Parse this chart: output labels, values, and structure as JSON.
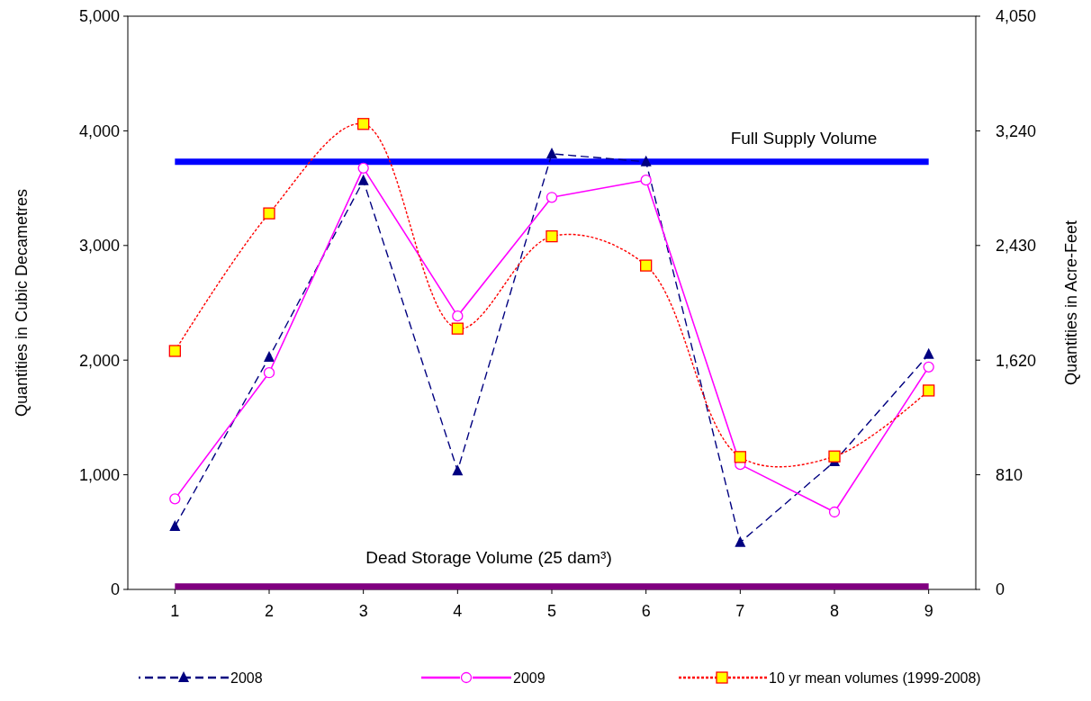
{
  "chart_data": {
    "type": "line",
    "ylabel": "Quantities in Cubic Decametres",
    "y2label": "Quantities in Acre-Feet",
    "categories": [
      "1",
      "2",
      "3",
      "4",
      "5",
      "6",
      "7",
      "8",
      "9"
    ],
    "ylim": [
      0,
      5000
    ],
    "yticks": [
      {
        "value": 0,
        "label": "0"
      },
      {
        "value": 1000,
        "label": "1,000"
      },
      {
        "value": 2000,
        "label": "2,000"
      },
      {
        "value": 3000,
        "label": "3,000"
      },
      {
        "value": 4000,
        "label": "4,000"
      },
      {
        "value": 5000,
        "label": "5,000"
      }
    ],
    "y2lim": [
      0,
      4050
    ],
    "y2ticks": [
      {
        "value": 0,
        "label": "0"
      },
      {
        "value": 810,
        "label": "810"
      },
      {
        "value": 1620,
        "label": "1,620"
      },
      {
        "value": 2430,
        "label": "2,430"
      },
      {
        "value": 3240,
        "label": "3,240"
      },
      {
        "value": 4050,
        "label": "4,050"
      }
    ],
    "series": [
      {
        "name": "2008",
        "color": "#000080",
        "marker": "triangle",
        "line_style": "dashed",
        "values": [
          550,
          2025,
          3565,
          1035,
          3800,
          3730,
          410,
          1115,
          2050
        ]
      },
      {
        "name": "2009",
        "color": "#ff00ff",
        "marker": "circle",
        "line_style": "solid",
        "values": [
          790,
          1890,
          3675,
          2385,
          3420,
          3570,
          1090,
          675,
          1940
        ]
      },
      {
        "name": "10 yr mean volumes (1999-2008)",
        "color": "#ff0000",
        "marker": "square",
        "line_style": "dotted",
        "values": [
          2080,
          3280,
          4060,
          2275,
          3080,
          2825,
          1155,
          1160,
          1735
        ]
      }
    ],
    "ref_lines": [
      {
        "axis": "y",
        "value": 3730,
        "label": "Full Supply Volume",
        "color": "#0000ff"
      },
      {
        "axis": "y",
        "value": 25,
        "label": "Dead Storage Volume (25 dam³)",
        "color": "#800080"
      }
    ],
    "grid": false,
    "legend": "bottom"
  }
}
